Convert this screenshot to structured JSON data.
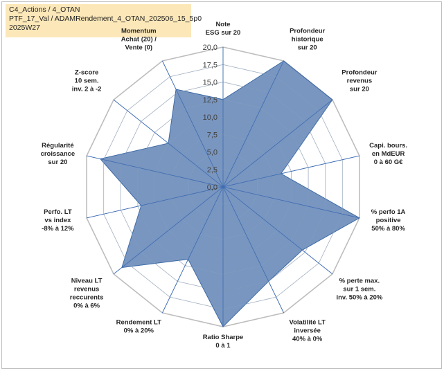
{
  "info": {
    "line1": "C4_Actions / 4_OTAN",
    "line2": "PTF_17_Val / ADAMRendement_4_OTAN_202506_15_5p0",
    "line3": "2025W27"
  },
  "chart_data": {
    "type": "radar",
    "r_min": 0,
    "r_max": 20,
    "ticks": [
      "0,0",
      "2,5",
      "5,0",
      "7,5",
      "10,0",
      "12,5",
      "15,0",
      "17,5",
      "20,0"
    ],
    "tick_values": [
      0,
      2.5,
      5,
      7.5,
      10,
      12.5,
      15,
      17.5,
      20
    ],
    "axes": [
      [
        "Note",
        "ESG sur 20"
      ],
      [
        "Profondeur",
        "historique",
        "sur 20"
      ],
      [
        "Profondeur",
        "revenus",
        "sur 20"
      ],
      [
        "Capi. bours.",
        "en MdEUR",
        "0 à 60 G€"
      ],
      [
        "% perfo 1A",
        "positive",
        "50% à 80%"
      ],
      [
        "% perte max.",
        "sur 1 sem.",
        "inv. 50% à 20%"
      ],
      [
        "Volatilité LT",
        "inversée",
        "40% à 0%"
      ],
      [
        "Ratio Sharpe",
        "0 à 1"
      ],
      [
        "Rendement LT",
        "0% à 20%"
      ],
      [
        "Niveau LT",
        "revenus",
        "reccurents",
        "0% à 6%"
      ],
      [
        "Perfo. LT",
        "vs index",
        "-8% à 12%"
      ],
      [
        "Régularité",
        "croissance",
        "sur 20"
      ],
      [
        "Z-score",
        "10 sem.",
        "inv. 2 à -2"
      ],
      [
        "Momentum",
        "Achat (20) /",
        "Vente (0)"
      ]
    ],
    "series": [
      {
        "values": [
          12.5,
          20.0,
          20.0,
          8.5,
          20.0,
          14.5,
          15.0,
          20.0,
          11.5,
          18.5,
          12.0,
          18.0,
          10.0,
          15.5
        ]
      }
    ],
    "grid": true,
    "colors": {
      "fill": "#5b7fb2",
      "stroke": "#3d6aa6",
      "grid": "#c8c8c8",
      "spoke": "#4a78c2"
    }
  }
}
